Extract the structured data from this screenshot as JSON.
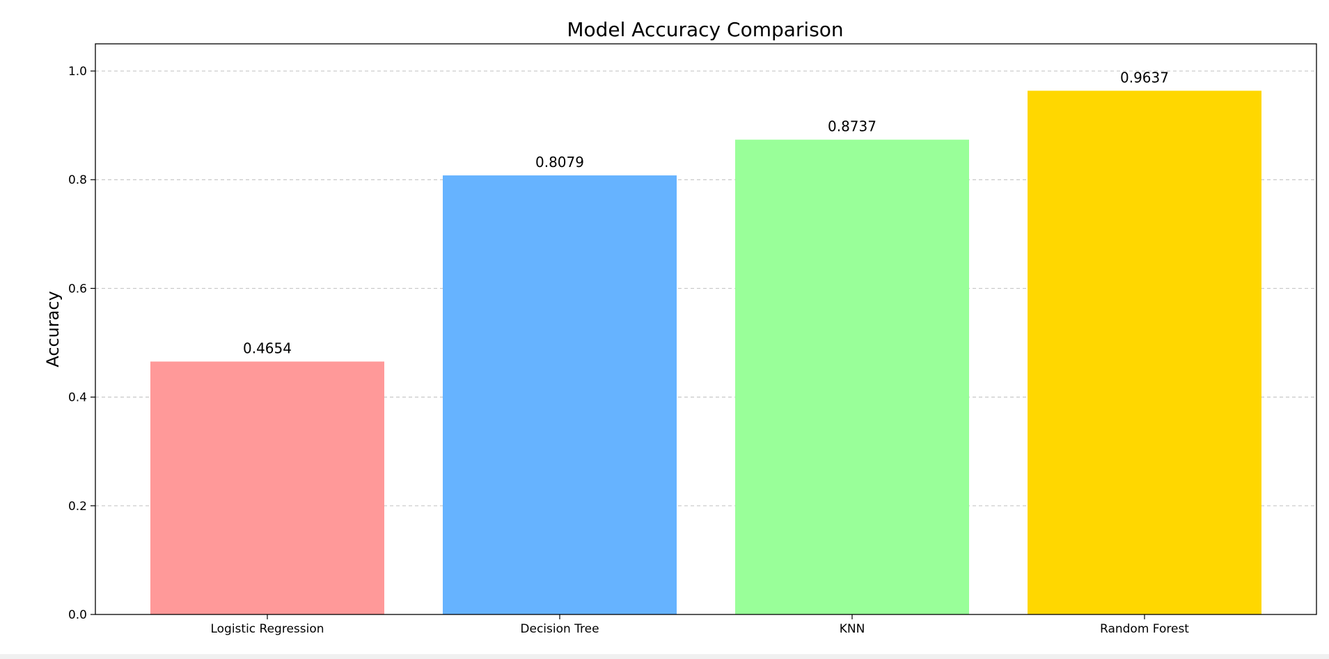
{
  "chart_data": {
    "type": "bar",
    "title": "Model Accuracy Comparison",
    "xlabel": "",
    "ylabel": "Accuracy",
    "categories": [
      "Logistic Regression",
      "Decision Tree",
      "KNN",
      "Random Forest"
    ],
    "values": [
      0.4654,
      0.8079,
      0.8737,
      0.9637
    ],
    "value_labels": [
      "0.4654",
      "0.8079",
      "0.8737",
      "0.9637"
    ],
    "colors": [
      "#ff9999",
      "#66b3ff",
      "#99ff99",
      "#ffd700"
    ],
    "ylim": [
      0,
      1.05
    ],
    "yticks": [
      "0.0",
      "0.2",
      "0.4",
      "0.6",
      "0.8",
      "1.0"
    ],
    "grid": "y-dashed",
    "legend": "none"
  }
}
